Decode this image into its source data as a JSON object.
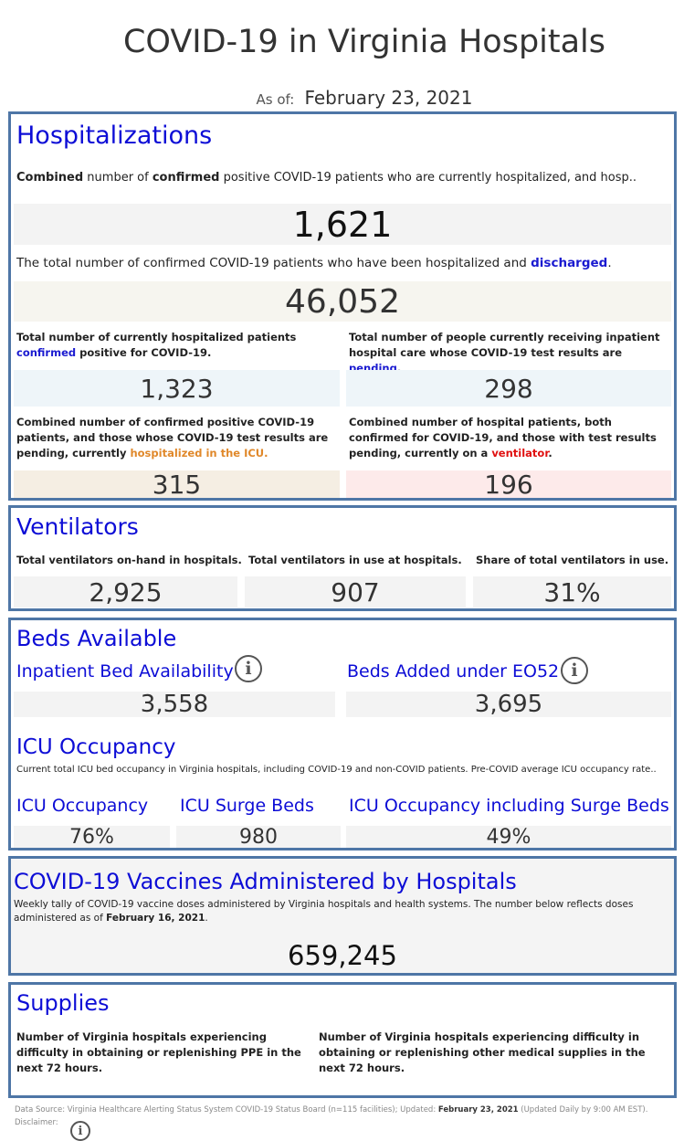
{
  "header": {
    "title": "COVID-19 in Virginia Hospitals",
    "as_of_label": "As of:",
    "as_of_date": "February 23, 2021"
  },
  "hospitalizations": {
    "title": "Hospitalizations",
    "combined_desc": {
      "b1": "Combined",
      "t1": " number of ",
      "b2": "confirmed",
      "t2": " positive COVID-19 patients who are currently hospitalized, and hosp.."
    },
    "combined_value": "1,621",
    "discharged_desc": {
      "t1": "The total number of confirmed COVID-19 patients who have been hospitalized and ",
      "hl": "discharged",
      "t2": "."
    },
    "discharged_value": "46,052",
    "confirmed_desc": {
      "t1": "Total number of currently hospitalized patients ",
      "hl": "confirmed",
      "t2": " positive for COVID-19."
    },
    "confirmed_value": "1,323",
    "pending_desc": {
      "t1": "Total number of people currently receiving inpatient hospital care whose COVID-19 test results are ",
      "hl": "pending",
      "t2": "."
    },
    "pending_value": "298",
    "icu_desc": {
      "t1": "Combined number of confirmed positive COVID-19 patients, and those whose COVID-19 test results are pending, currently ",
      "hl": "hospitalized in the ICU."
    },
    "icu_value": "315",
    "vent_desc": {
      "t1": "Combined number of hospital patients, both confirmed for COVID-19, and those with test results pending, currently on a ",
      "hl": "ventilator",
      "t2": "."
    },
    "vent_value": "196"
  },
  "ventilators": {
    "title": "Ventilators",
    "items": [
      {
        "label": "Total ventilators on-hand in hospitals.",
        "value": "2,925"
      },
      {
        "label": "Total ventilators in use at hospitals.",
        "value": "907"
      },
      {
        "label": "Share of total ventilators in use.",
        "value": "31%"
      }
    ]
  },
  "beds": {
    "title": "Beds Available",
    "inpatient_label": "Inpatient Bed Availability",
    "inpatient_value": "3,558",
    "eo52_label": "Beds Added under EO52",
    "eo52_value": "3,695",
    "icu_title": "ICU Occupancy",
    "icu_desc": "Current total ICU bed occupancy in Virginia hospitals, including COVID-19 and non-COVID patients. Pre-COVID average ICU occupancy rate..",
    "icu_items": [
      {
        "label": "ICU Occupancy",
        "value": "76%"
      },
      {
        "label": "ICU Surge Beds",
        "value": "980"
      },
      {
        "label": "ICU Occupancy including Surge Beds",
        "value": "49%"
      }
    ]
  },
  "vaccines": {
    "title": "COVID-19 Vaccines Administered by Hospitals",
    "desc": "Weekly tally of COVID-19 vaccine doses administered by Virginia hospitals and health systems. The number below reflects doses administered as of ",
    "desc_date": "February 16, 2021",
    "desc_end": ".",
    "value": "659,245"
  },
  "supplies": {
    "title": "Supplies",
    "ppe_desc": "Number of Virginia hospitals experiencing difficulty in obtaining or replenishing PPE in the next 72 hours.",
    "other_desc": "Number of Virginia hospitals experiencing difficulty in obtaining or replenishing other medical supplies in the next 72 hours."
  },
  "footer": {
    "source": "Data Source: Virginia Healthcare Alerting Status System COVID-19 Status Board (n=115 facilities); Updated: ",
    "updated": "February 23, 2021",
    "note": " (Updated Daily by 9:00 AM EST).",
    "disclaimer": "Disclaimer:"
  },
  "colors": {
    "border": "#4e76a6",
    "heading": "#0d0dd6",
    "orange": "#e0882a",
    "red": "#e01010"
  },
  "icons": {
    "info": "info-circle-icon"
  }
}
